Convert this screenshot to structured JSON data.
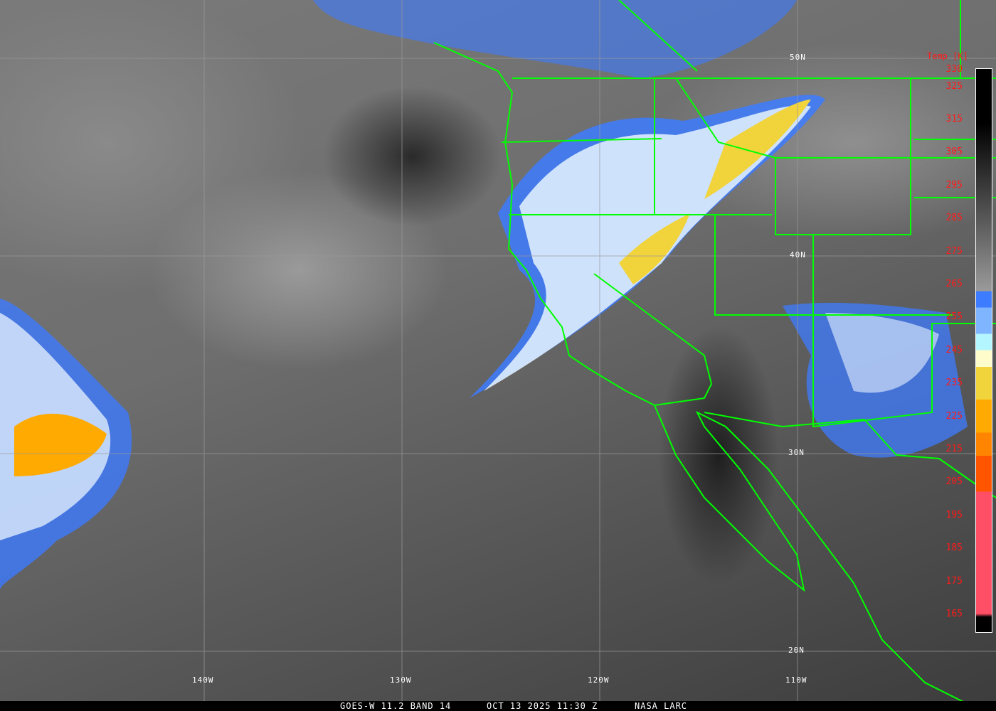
{
  "caption": {
    "satellite": "GOES-W 11.2 BAND 14",
    "datetime": "OCT 13 2025 11:30 Z",
    "source": "NASA LARC"
  },
  "grid": {
    "latitudes": [
      "50N",
      "40N",
      "30N",
      "20N"
    ],
    "longitudes": [
      "140W",
      "130W",
      "120W",
      "110W"
    ]
  },
  "colorbar": {
    "title": "Temp [K]",
    "ticks": [
      "330",
      "325",
      "315",
      "305",
      "295",
      "285",
      "275",
      "265",
      "255",
      "245",
      "235",
      "225",
      "215",
      "205",
      "195",
      "185",
      "175",
      "165"
    ],
    "colors": {
      "warm_top": "#000000",
      "gray_mid": "#9a9a9a",
      "blue": "#3d7bff",
      "light_blue": "#7fb4ff",
      "cyan": "#b4f6ff",
      "cream": "#fffccb",
      "yellow": "#f1d33c",
      "orange": "#ffaa00",
      "dark_orange": "#ff8400",
      "red_orange": "#ff5500",
      "pink": "#ff4f66"
    }
  },
  "overlay_color": "#00ff00"
}
